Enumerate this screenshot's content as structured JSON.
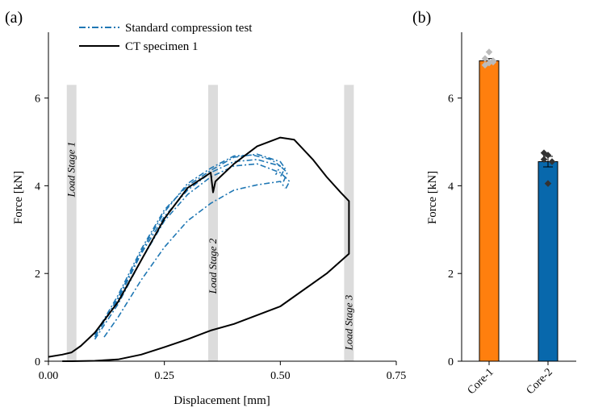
{
  "chart_data": [
    {
      "panel": "(a)",
      "type": "line",
      "xlabel": "Displacement [mm]",
      "ylabel": "Force [kN]",
      "xlim": [
        0,
        0.75
      ],
      "ylim": [
        0,
        7.5
      ],
      "xticks": [
        0,
        0.25,
        0.5,
        0.75
      ],
      "xtick_labels": [
        "0.00",
        "0.25",
        "0.50",
        "0.75"
      ],
      "yticks": [
        0,
        2,
        4,
        6
      ],
      "ytick_labels": [
        "0",
        "2",
        "4",
        "6"
      ],
      "legend": [
        "Standard compression test",
        "CT specimen 1"
      ],
      "legend_position": "top-left",
      "load_stages": [
        {
          "label": "Load Stage 1",
          "x": 0.05
        },
        {
          "label": "Load Stage 2",
          "x": 0.355
        },
        {
          "label": "Load Stage 3",
          "x": 0.648
        }
      ],
      "series": [
        {
          "name": "Standard compression test",
          "style": "dash-dot",
          "color": "#1f77b4",
          "x": [
            0.1,
            0.15,
            0.2,
            0.25,
            0.3,
            0.35,
            0.4,
            0.45,
            0.5,
            0.52,
            0.51
          ],
          "y": [
            0.5,
            1.3,
            2.3,
            3.2,
            3.8,
            4.2,
            4.45,
            4.5,
            4.3,
            4.1,
            3.9
          ]
        },
        {
          "name": "Standard compression test",
          "style": "dash-dot",
          "color": "#1f77b4",
          "x": [
            0.1,
            0.15,
            0.2,
            0.25,
            0.3,
            0.35,
            0.4,
            0.45,
            0.5,
            0.515,
            0.505
          ],
          "y": [
            0.55,
            1.4,
            2.45,
            3.3,
            3.9,
            4.3,
            4.55,
            4.6,
            4.45,
            4.3,
            4.05
          ]
        },
        {
          "name": "Standard compression test",
          "style": "dash-dot",
          "color": "#1f77b4",
          "x": [
            0.1,
            0.15,
            0.2,
            0.25,
            0.3,
            0.35,
            0.4,
            0.45,
            0.5,
            0.51,
            0.5
          ],
          "y": [
            0.6,
            1.5,
            2.55,
            3.45,
            4.0,
            4.35,
            4.65,
            4.72,
            4.55,
            4.4,
            4.2
          ]
        },
        {
          "name": "Standard compression test",
          "style": "dash-dot",
          "color": "#1f77b4",
          "x": [
            0.1,
            0.15,
            0.2,
            0.25,
            0.3,
            0.35,
            0.4,
            0.44,
            0.48,
            0.5,
            0.49
          ],
          "y": [
            0.55,
            1.45,
            2.5,
            3.4,
            4.05,
            4.4,
            4.68,
            4.7,
            4.6,
            4.45,
            4.25
          ]
        },
        {
          "name": "Standard compression test",
          "style": "dash-dot",
          "color": "#1f77b4",
          "x": [
            0.12,
            0.15,
            0.2,
            0.25,
            0.3,
            0.35,
            0.4,
            0.45,
            0.5,
            0.51
          ],
          "y": [
            0.55,
            1.0,
            1.85,
            2.6,
            3.2,
            3.6,
            3.9,
            4.02,
            4.1,
            3.95
          ]
        },
        {
          "name": "CT specimen 1",
          "style": "solid",
          "color": "#000000",
          "x": [
            0.0,
            0.03,
            0.05,
            0.07,
            0.1,
            0.15,
            0.2,
            0.25,
            0.3,
            0.35,
            0.355,
            0.36,
            0.4,
            0.45,
            0.5,
            0.53,
            0.57,
            0.6,
            0.63,
            0.648,
            0.648,
            0.6,
            0.5,
            0.4,
            0.35,
            0.3,
            0.25,
            0.2,
            0.15,
            0.1,
            0.05,
            0.03
          ],
          "y": [
            0.1,
            0.15,
            0.2,
            0.35,
            0.65,
            1.35,
            2.3,
            3.25,
            3.95,
            4.3,
            3.85,
            4.1,
            4.5,
            4.9,
            5.1,
            5.05,
            4.6,
            4.2,
            3.85,
            3.65,
            2.45,
            2.0,
            1.25,
            0.85,
            0.7,
            0.5,
            0.32,
            0.15,
            0.04,
            0.01,
            0.0,
            0.0
          ]
        }
      ]
    },
    {
      "panel": "(b)",
      "type": "bar",
      "ylabel": "Force [kN]",
      "ylim": [
        0,
        7.5
      ],
      "yticks": [
        0,
        2,
        4,
        6
      ],
      "ytick_labels": [
        "0",
        "2",
        "4",
        "6"
      ],
      "categories": [
        "Core-1",
        "Core-2"
      ],
      "values": [
        6.85,
        4.55
      ],
      "errors": [
        0.05,
        0.12
      ],
      "colors": [
        "#ff7f0e",
        "#0868ac"
      ],
      "points": [
        [
          6.75,
          6.8,
          6.85,
          6.9,
          7.05,
          6.82
        ],
        [
          4.75,
          4.7,
          4.55,
          4.6,
          4.05
        ]
      ]
    }
  ]
}
